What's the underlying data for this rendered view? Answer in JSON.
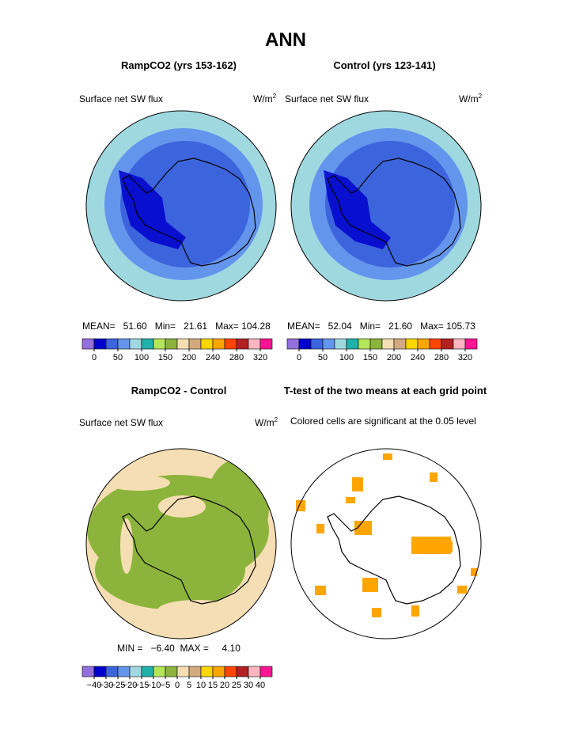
{
  "title": "ANN",
  "panels": [
    {
      "title": "RampCO2 (yrs 153-162)",
      "label": "Surface net SW flux",
      "units": "W/m",
      "units_exp": "2",
      "stats": "MEAN=   51.60   Min=   21.61   Max= 104.28"
    },
    {
      "title": "Control (yrs 123-141)",
      "label": "Surface net SW flux",
      "units": "W/m",
      "units_exp": "2",
      "stats": "MEAN=   52.04   Min=   21.60   Max= 105.73"
    },
    {
      "title": "RampCO2 - Control",
      "label": "Surface net SW flux",
      "units": "W/m",
      "units_exp": "2",
      "stats": "MIN =   −6.40  MAX =     4.10"
    },
    {
      "title": "T-test of the two means at each grid point",
      "label": "Colored cells are significant at the 0.05 level"
    }
  ],
  "colorbars": [
    {
      "colors": [
        "#9370db",
        "#0000cd",
        "#3c64dc",
        "#6495ed",
        "#a0d8e0",
        "#20b2aa",
        "#b4e65a",
        "#8cb43c",
        "#f5deb3",
        "#d2aa7d",
        "#ffd700",
        "#ffa500",
        "#ff4500",
        "#b22222",
        "#ffb6c1",
        "#ff1493"
      ],
      "labels": [
        "0",
        "50",
        "100",
        "150",
        "200",
        "240",
        "280",
        "320"
      ],
      "label_stride": 2
    },
    {
      "colors": [
        "#9370db",
        "#0000cd",
        "#3c64dc",
        "#6495ed",
        "#a0d8e0",
        "#20b2aa",
        "#b4e65a",
        "#8cb43c",
        "#f5deb3",
        "#d2aa7d",
        "#ffd700",
        "#ffa500",
        "#ff4500",
        "#b22222",
        "#ffb6c1",
        "#ff1493"
      ],
      "labels": [
        "−40",
        "−30",
        "−25",
        "−20",
        "−15",
        "−10",
        "−5",
        "0",
        "5",
        "10",
        "15",
        "20",
        "25",
        "30",
        "40"
      ],
      "label_stride": 1
    }
  ]
}
